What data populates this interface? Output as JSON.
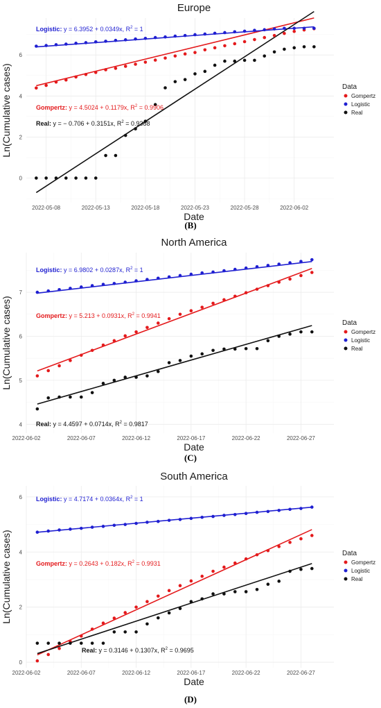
{
  "chart_data": [
    {
      "type": "scatter",
      "panel_label": "(B)",
      "title": "Europe",
      "xlabel": "Date",
      "ylabel": "Ln(Cumulative cases)",
      "x_start": "2022-05-07",
      "x_ticks": [
        "2022-05-08",
        "2022-05-13",
        "2022-05-18",
        "2022-05-23",
        "2022-05-28",
        "2022-06-02"
      ],
      "y_ticks": [
        0,
        2,
        4,
        6
      ],
      "ylim": [
        -1.2,
        7.8
      ],
      "legend_title": "Data",
      "series": [
        {
          "name": "Gompertz",
          "color": "#e41a1c",
          "values": [
            4.39,
            4.52,
            4.68,
            4.78,
            4.93,
            5.05,
            5.15,
            5.28,
            5.35,
            5.45,
            5.55,
            5.65,
            5.75,
            5.85,
            5.95,
            6.05,
            6.12,
            6.25,
            6.35,
            6.45,
            6.55,
            6.65,
            6.75,
            6.85,
            6.95,
            7.05,
            7.15,
            7.22,
            7.28
          ]
        },
        {
          "name": "Logistic",
          "color": "#1f1fd1",
          "values": [
            6.43,
            6.46,
            6.5,
            6.53,
            6.57,
            6.6,
            6.64,
            6.67,
            6.71,
            6.74,
            6.78,
            6.81,
            6.85,
            6.88,
            6.92,
            6.95,
            6.99,
            7.02,
            7.06,
            7.09,
            7.13,
            7.16,
            7.2,
            7.23,
            7.27,
            7.3,
            7.3,
            7.3,
            7.3
          ]
        },
        {
          "name": "Real",
          "color": "#111111",
          "values": [
            0,
            0,
            0,
            0,
            0,
            0,
            0,
            1.1,
            1.1,
            2.08,
            2.4,
            2.77,
            3.58,
            4.4,
            4.7,
            4.8,
            5.08,
            5.2,
            5.5,
            5.7,
            5.7,
            5.74,
            5.74,
            5.95,
            6.15,
            6.28,
            6.35,
            6.4,
            6.4
          ]
        }
      ],
      "fits": [
        {
          "name": "Gompertz",
          "color": "#e41a1c",
          "intercept": 4.5024,
          "slope": 0.1179,
          "r2": "0.9906",
          "label": "Gompertz:",
          "equation": "y = 4.5024 + 0.1179x,",
          "r2_prefix": "R",
          "r2_suffix": " = 0.9906",
          "r2_exp": "2"
        },
        {
          "name": "Logistic",
          "color": "#1f1fd1",
          "intercept": 6.3952,
          "slope": 0.0349,
          "r2": "1",
          "label": "Logistic:",
          "equation": "y = 6.3952 + 0.0349x,",
          "r2_prefix": "R",
          "r2_suffix": " = 1",
          "r2_exp": "2"
        },
        {
          "name": "Real",
          "color": "#111111",
          "intercept": -0.706,
          "slope": 0.3151,
          "r2": "0.9388",
          "label": "Real:",
          "equation": "y = − 0.706 + 0.3151x,",
          "r2_prefix": "R",
          "r2_suffix": " = 0.9388",
          "r2_exp": "2"
        }
      ]
    },
    {
      "type": "scatter",
      "panel_label": "(C)",
      "title": "North America",
      "xlabel": "Date",
      "ylabel": "Ln(Cumulative cases)",
      "x_start": "2022-06-03",
      "x_ticks": [
        "2022-06-02",
        "2022-06-07",
        "2022-06-12",
        "2022-06-17",
        "2022-06-22",
        "2022-06-27"
      ],
      "y_ticks": [
        4,
        5,
        6,
        7
      ],
      "ylim": [
        3.8,
        7.9
      ],
      "legend_title": "Data",
      "series": [
        {
          "name": "Gompertz",
          "color": "#e41a1c",
          "values": [
            5.1,
            5.22,
            5.33,
            5.45,
            5.57,
            5.68,
            5.8,
            5.9,
            6.01,
            6.1,
            6.2,
            6.3,
            6.4,
            6.5,
            6.58,
            6.66,
            6.75,
            6.83,
            6.91,
            6.99,
            7.07,
            7.15,
            7.23,
            7.3,
            7.38,
            7.45
          ]
        },
        {
          "name": "Logistic",
          "color": "#1f1fd1",
          "values": [
            7.0,
            7.03,
            7.06,
            7.09,
            7.12,
            7.15,
            7.18,
            7.2,
            7.23,
            7.26,
            7.29,
            7.32,
            7.35,
            7.38,
            7.41,
            7.44,
            7.46,
            7.49,
            7.52,
            7.55,
            7.58,
            7.61,
            7.64,
            7.67,
            7.7,
            7.74
          ]
        },
        {
          "name": "Real",
          "color": "#111111",
          "values": [
            4.35,
            4.6,
            4.62,
            4.62,
            4.62,
            4.72,
            4.93,
            5.0,
            5.07,
            5.07,
            5.1,
            5.2,
            5.4,
            5.45,
            5.55,
            5.6,
            5.68,
            5.71,
            5.71,
            5.72,
            5.72,
            5.9,
            6.0,
            6.05,
            6.1,
            6.1
          ]
        }
      ],
      "fits": [
        {
          "name": "Gompertz",
          "color": "#e41a1c",
          "intercept": 5.213,
          "slope": 0.0931,
          "r2": "0.9941",
          "label": "Gompertz:",
          "equation": "y = 5.213 + 0.0931x,",
          "r2_prefix": "R",
          "r2_suffix": " = 0.9941",
          "r2_exp": "2"
        },
        {
          "name": "Logistic",
          "color": "#1f1fd1",
          "intercept": 6.9802,
          "slope": 0.0287,
          "r2": "1",
          "label": "Logistic:",
          "equation": "y = 6.9802 + 0.0287x,",
          "r2_prefix": "R",
          "r2_suffix": " = 1",
          "r2_exp": "2"
        },
        {
          "name": "Real",
          "color": "#111111",
          "intercept": 4.4597,
          "slope": 0.0714,
          "r2": "0.9817",
          "label": "Real:",
          "equation": "y = 4.4597 + 0.0714x,",
          "r2_prefix": "R",
          "r2_suffix": " = 0.9817",
          "r2_exp": "2"
        }
      ]
    },
    {
      "type": "scatter",
      "panel_label": "(D)",
      "title": "South America",
      "xlabel": "Date",
      "ylabel": "Ln(Cumulative cases)",
      "x_start": "2022-06-03",
      "x_ticks": [
        "2022-06-02",
        "2022-06-07",
        "2022-06-12",
        "2022-06-17",
        "2022-06-22",
        "2022-06-27"
      ],
      "y_ticks": [
        0,
        2,
        4,
        6
      ],
      "ylim": [
        -0.2,
        6.4
      ],
      "legend_title": "Data",
      "series": [
        {
          "name": "Gompertz",
          "color": "#e41a1c",
          "values": [
            0.05,
            0.28,
            0.5,
            0.75,
            0.95,
            1.2,
            1.42,
            1.6,
            1.8,
            2.0,
            2.2,
            2.4,
            2.6,
            2.78,
            2.95,
            3.12,
            3.3,
            3.45,
            3.6,
            3.75,
            3.9,
            4.05,
            4.2,
            4.35,
            4.48,
            4.6
          ]
        },
        {
          "name": "Logistic",
          "color": "#1f1fd1",
          "values": [
            4.72,
            4.76,
            4.8,
            4.83,
            4.86,
            4.9,
            4.93,
            4.97,
            5.0,
            5.04,
            5.08,
            5.11,
            5.15,
            5.18,
            5.22,
            5.26,
            5.29,
            5.33,
            5.36,
            5.4,
            5.44,
            5.47,
            5.51,
            5.55,
            5.58,
            5.63
          ]
        },
        {
          "name": "Real",
          "color": "#111111",
          "values": [
            0.69,
            0.69,
            0.69,
            0.69,
            0.69,
            0.69,
            0.69,
            1.1,
            1.1,
            1.1,
            1.39,
            1.61,
            1.79,
            1.95,
            2.2,
            2.3,
            2.48,
            2.48,
            2.56,
            2.56,
            2.64,
            2.83,
            2.94,
            3.3,
            3.37,
            3.4
          ]
        }
      ],
      "fits": [
        {
          "name": "Gompertz",
          "color": "#e41a1c",
          "intercept": 0.2643,
          "slope": 0.182,
          "r2": "0.9931",
          "label": "Gompertz:",
          "equation": "y = 0.2643 + 0.182x,",
          "r2_prefix": "R",
          "r2_suffix": " = 0.9931",
          "r2_exp": "2"
        },
        {
          "name": "Logistic",
          "color": "#1f1fd1",
          "intercept": 4.7174,
          "slope": 0.0364,
          "r2": "1",
          "label": "Logistic:",
          "equation": "y = 4.7174 + 0.0364x,",
          "r2_prefix": "R",
          "r2_suffix": " = 1",
          "r2_exp": "2"
        },
        {
          "name": "Real",
          "color": "#111111",
          "intercept": 0.3146,
          "slope": 0.1307,
          "r2": "0.9695",
          "label": "Real:",
          "equation": "y = 0.3146 + 0.1307x,",
          "r2_prefix": "R",
          "r2_suffix": " = 0.9695",
          "r2_exp": "2"
        }
      ]
    }
  ]
}
